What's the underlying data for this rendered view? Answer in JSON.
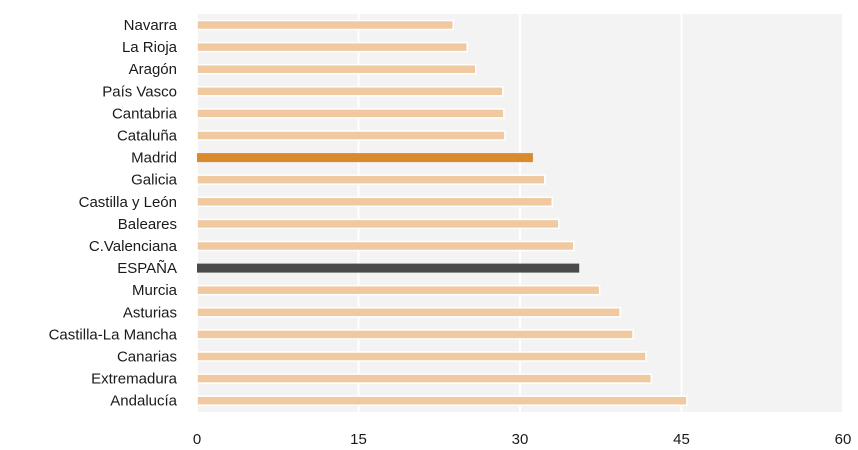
{
  "chart_data": {
    "type": "bar",
    "orientation": "horizontal",
    "categories": [
      "Navarra",
      "La Rioja",
      "Aragón",
      "País Vasco",
      "Cantabria",
      "Cataluña",
      "Madrid",
      "Galicia",
      "Castilla y León",
      "Baleares",
      "C.Valenciana",
      "ESPAÑA",
      "Murcia",
      "Asturias",
      "Castilla-La Mancha",
      "Canarias",
      "Extremadura",
      "Andalucía"
    ],
    "values": [
      23.8,
      25.1,
      25.9,
      28.4,
      28.5,
      28.6,
      31.2,
      32.3,
      33.0,
      33.6,
      35.0,
      35.5,
      37.4,
      39.3,
      40.5,
      41.7,
      42.2,
      45.5
    ],
    "bar_colors": {
      "default": "#f0c9a0",
      "Madrid": "#d98a2c",
      "ESPAÑA": "#4a4a4a"
    },
    "xlim": [
      0,
      60
    ],
    "xticks": [
      0,
      15,
      30,
      45,
      60
    ],
    "title": "",
    "xlabel": "",
    "ylabel": "",
    "grid": "vertical",
    "legend": "none"
  }
}
